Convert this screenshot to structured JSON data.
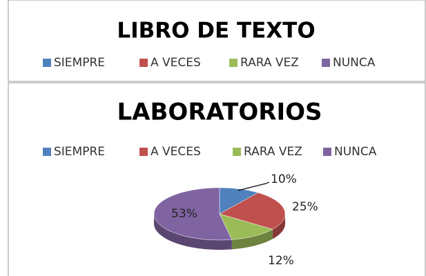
{
  "chart_data": [
    {
      "type": "pie",
      "title": "LIBRO DE TEXTO",
      "categories": [
        "SIEMPRE",
        "A VECES",
        "RARA VEZ",
        "NUNCA"
      ],
      "colors": [
        "#4f81bd",
        "#c0504d",
        "#9bbb59",
        "#8064a2"
      ]
    },
    {
      "type": "pie3d",
      "title": "LABORATORIOS",
      "categories": [
        "SIEMPRE",
        "A VECES",
        "RARA VEZ",
        "NUNCA"
      ],
      "values": [
        10,
        25,
        12,
        53
      ],
      "value_labels": [
        "10%",
        "25%",
        "12%",
        "53%"
      ],
      "colors": [
        "#4f81bd",
        "#c0504d",
        "#9bbb59",
        "#8064a2"
      ]
    }
  ]
}
